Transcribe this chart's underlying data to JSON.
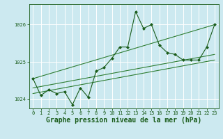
{
  "title": "Graphe pression niveau de la mer (hPa)",
  "background_color": "#cce9f0",
  "grid_color": "#ffffff",
  "line_color_dark": "#1a5c1a",
  "line_color_med": "#2e7d32",
  "xlim": [
    -0.5,
    23.5
  ],
  "ylim": [
    1023.75,
    1026.55
  ],
  "yticks": [
    1024,
    1025,
    1026
  ],
  "xticks": [
    0,
    1,
    2,
    3,
    4,
    5,
    6,
    7,
    8,
    9,
    10,
    11,
    12,
    13,
    14,
    15,
    16,
    17,
    18,
    19,
    20,
    21,
    22,
    23
  ],
  "series1": [
    1024.55,
    1024.1,
    1024.25,
    1024.15,
    1024.2,
    1023.85,
    1024.3,
    1024.05,
    1024.75,
    1024.85,
    1025.1,
    1025.4,
    1025.4,
    1026.35,
    1025.9,
    1026.0,
    1025.45,
    1025.25,
    1025.2,
    1025.05,
    1025.05,
    1025.05,
    1025.4,
    1026.0
  ],
  "line1": [
    [
      0,
      1024.55
    ],
    [
      23,
      1026.0
    ]
  ],
  "line2": [
    [
      0,
      1024.3
    ],
    [
      23,
      1025.2
    ]
  ],
  "line3": [
    [
      0,
      1024.15
    ],
    [
      23,
      1025.05
    ]
  ],
  "marker_size": 2.5,
  "linewidth": 0.8,
  "title_fontsize": 7,
  "tick_fontsize": 5
}
